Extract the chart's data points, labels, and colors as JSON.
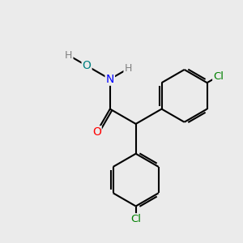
{
  "background_color": "#ebebeb",
  "atom_colors": {
    "O_carbonyl": "#ff0000",
    "N": "#0000ff",
    "O_hydroxyl": "#008080",
    "Cl": "#008000",
    "H": "#808080",
    "C": "#000000"
  },
  "lw": 1.5,
  "figsize": [
    3.0,
    3.0
  ],
  "dpi": 100
}
